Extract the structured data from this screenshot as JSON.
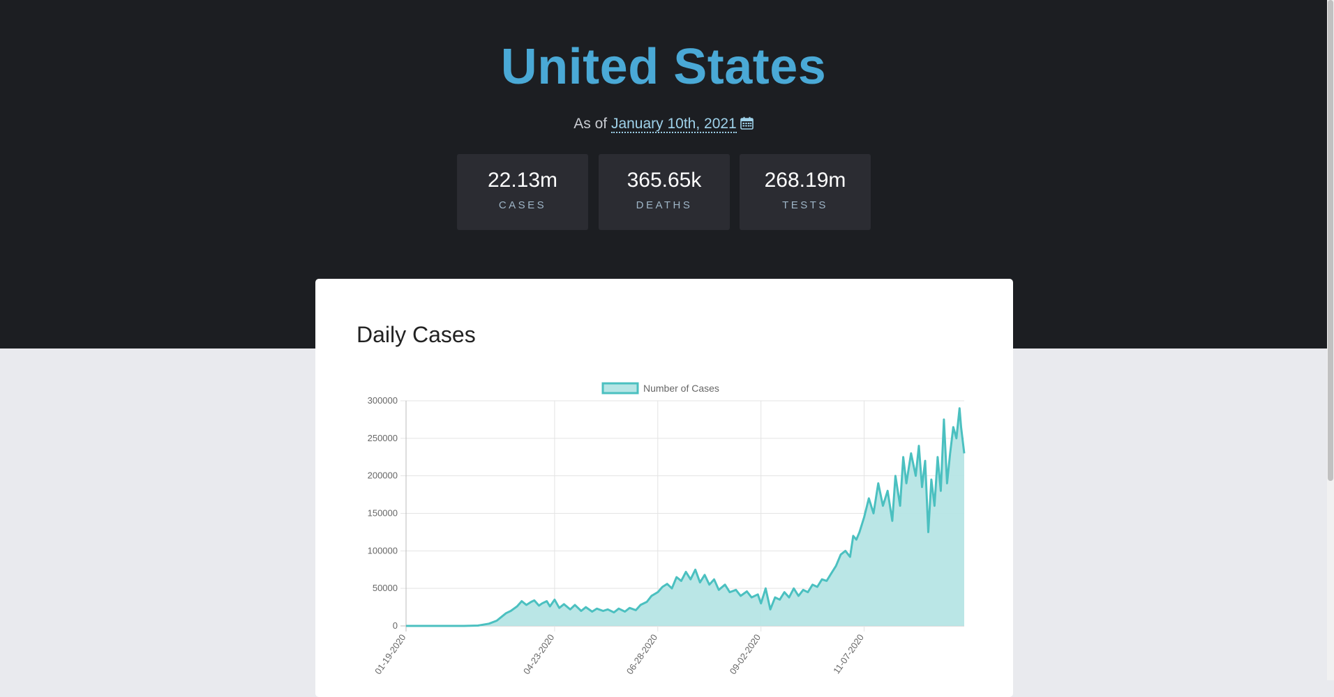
{
  "header": {
    "title": "United States",
    "as_of_prefix": "As of",
    "date": "January 10th, 2021",
    "calendar_icon": "calendar-icon"
  },
  "stats": [
    {
      "value": "22.13m",
      "label": "CASES"
    },
    {
      "value": "365.65k",
      "label": "DEATHS"
    },
    {
      "value": "268.19m",
      "label": "TESTS"
    }
  ],
  "card": {
    "title": "Daily Cases"
  },
  "colors": {
    "accent": "#4aa9d6",
    "series_line": "#4bc0c0",
    "series_fill": "#b6e5e5",
    "hero_bg": "#1c1e22",
    "stat_bg": "#2b2c32"
  },
  "chart_data": {
    "type": "area",
    "legend": [
      "Number of Cases"
    ],
    "legend_position": "top",
    "grid": true,
    "ylim": [
      0,
      300000
    ],
    "y_ticks": [
      "0",
      "50000",
      "100000",
      "150000",
      "200000",
      "250000",
      "300000"
    ],
    "x_ticks": [
      "01-19-2020",
      "04-23-2020",
      "06-28-2020",
      "09-02-2020",
      "11-07-2020"
    ],
    "series": [
      {
        "name": "Number of Cases",
        "x": [
          "2020-01-19",
          "2020-02-10",
          "2020-02-25",
          "2020-03-05",
          "2020-03-12",
          "2020-03-17",
          "2020-03-20",
          "2020-03-23",
          "2020-03-26",
          "2020-03-30",
          "2020-04-02",
          "2020-04-05",
          "2020-04-08",
          "2020-04-10",
          "2020-04-13",
          "2020-04-15",
          "2020-04-18",
          "2020-04-20",
          "2020-04-23",
          "2020-04-26",
          "2020-04-29",
          "2020-05-03",
          "2020-05-06",
          "2020-05-10",
          "2020-05-13",
          "2020-05-17",
          "2020-05-20",
          "2020-05-24",
          "2020-05-27",
          "2020-05-31",
          "2020-06-03",
          "2020-06-07",
          "2020-06-10",
          "2020-06-14",
          "2020-06-17",
          "2020-06-21",
          "2020-06-24",
          "2020-06-28",
          "2020-07-01",
          "2020-07-04",
          "2020-07-07",
          "2020-07-10",
          "2020-07-13",
          "2020-07-16",
          "2020-07-19",
          "2020-07-22",
          "2020-07-25",
          "2020-07-28",
          "2020-07-31",
          "2020-08-03",
          "2020-08-06",
          "2020-08-10",
          "2020-08-13",
          "2020-08-17",
          "2020-08-20",
          "2020-08-24",
          "2020-08-27",
          "2020-08-31",
          "2020-09-02",
          "2020-09-05",
          "2020-09-08",
          "2020-09-11",
          "2020-09-14",
          "2020-09-17",
          "2020-09-20",
          "2020-09-23",
          "2020-09-26",
          "2020-09-29",
          "2020-10-02",
          "2020-10-05",
          "2020-10-08",
          "2020-10-11",
          "2020-10-14",
          "2020-10-17",
          "2020-10-20",
          "2020-10-23",
          "2020-10-26",
          "2020-10-29",
          "2020-10-31",
          "2020-11-02",
          "2020-11-04",
          "2020-11-07",
          "2020-11-10",
          "2020-11-13",
          "2020-11-16",
          "2020-11-19",
          "2020-11-22",
          "2020-11-25",
          "2020-11-27",
          "2020-11-30",
          "2020-12-02",
          "2020-12-04",
          "2020-12-07",
          "2020-12-10",
          "2020-12-12",
          "2020-12-14",
          "2020-12-16",
          "2020-12-18",
          "2020-12-20",
          "2020-12-22",
          "2020-12-24",
          "2020-12-26",
          "2020-12-28",
          "2020-12-30",
          "2021-01-01",
          "2021-01-03",
          "2021-01-05",
          "2021-01-07",
          "2021-01-08",
          "2021-01-10"
        ],
        "y": [
          0,
          0,
          0,
          500,
          3000,
          7000,
          12000,
          17000,
          20000,
          26000,
          33000,
          28000,
          32000,
          34000,
          27000,
          30000,
          33000,
          26000,
          35000,
          24000,
          29000,
          22000,
          28000,
          20000,
          25000,
          19000,
          23000,
          20000,
          22000,
          18000,
          23000,
          19000,
          24000,
          21000,
          28000,
          32000,
          40000,
          45000,
          52000,
          56000,
          50000,
          65000,
          60000,
          72000,
          62000,
          75000,
          58000,
          68000,
          55000,
          62000,
          48000,
          55000,
          45000,
          48000,
          40000,
          46000,
          38000,
          42000,
          30000,
          50000,
          22000,
          38000,
          35000,
          45000,
          38000,
          50000,
          40000,
          48000,
          45000,
          55000,
          52000,
          62000,
          60000,
          70000,
          80000,
          95000,
          100000,
          92000,
          120000,
          115000,
          125000,
          145000,
          170000,
          150000,
          190000,
          160000,
          180000,
          140000,
          200000,
          160000,
          225000,
          190000,
          230000,
          200000,
          240000,
          185000,
          220000,
          125000,
          195000,
          160000,
          225000,
          180000,
          275000,
          190000,
          230000,
          265000,
          250000,
          290000,
          265000,
          230000
        ]
      }
    ]
  }
}
